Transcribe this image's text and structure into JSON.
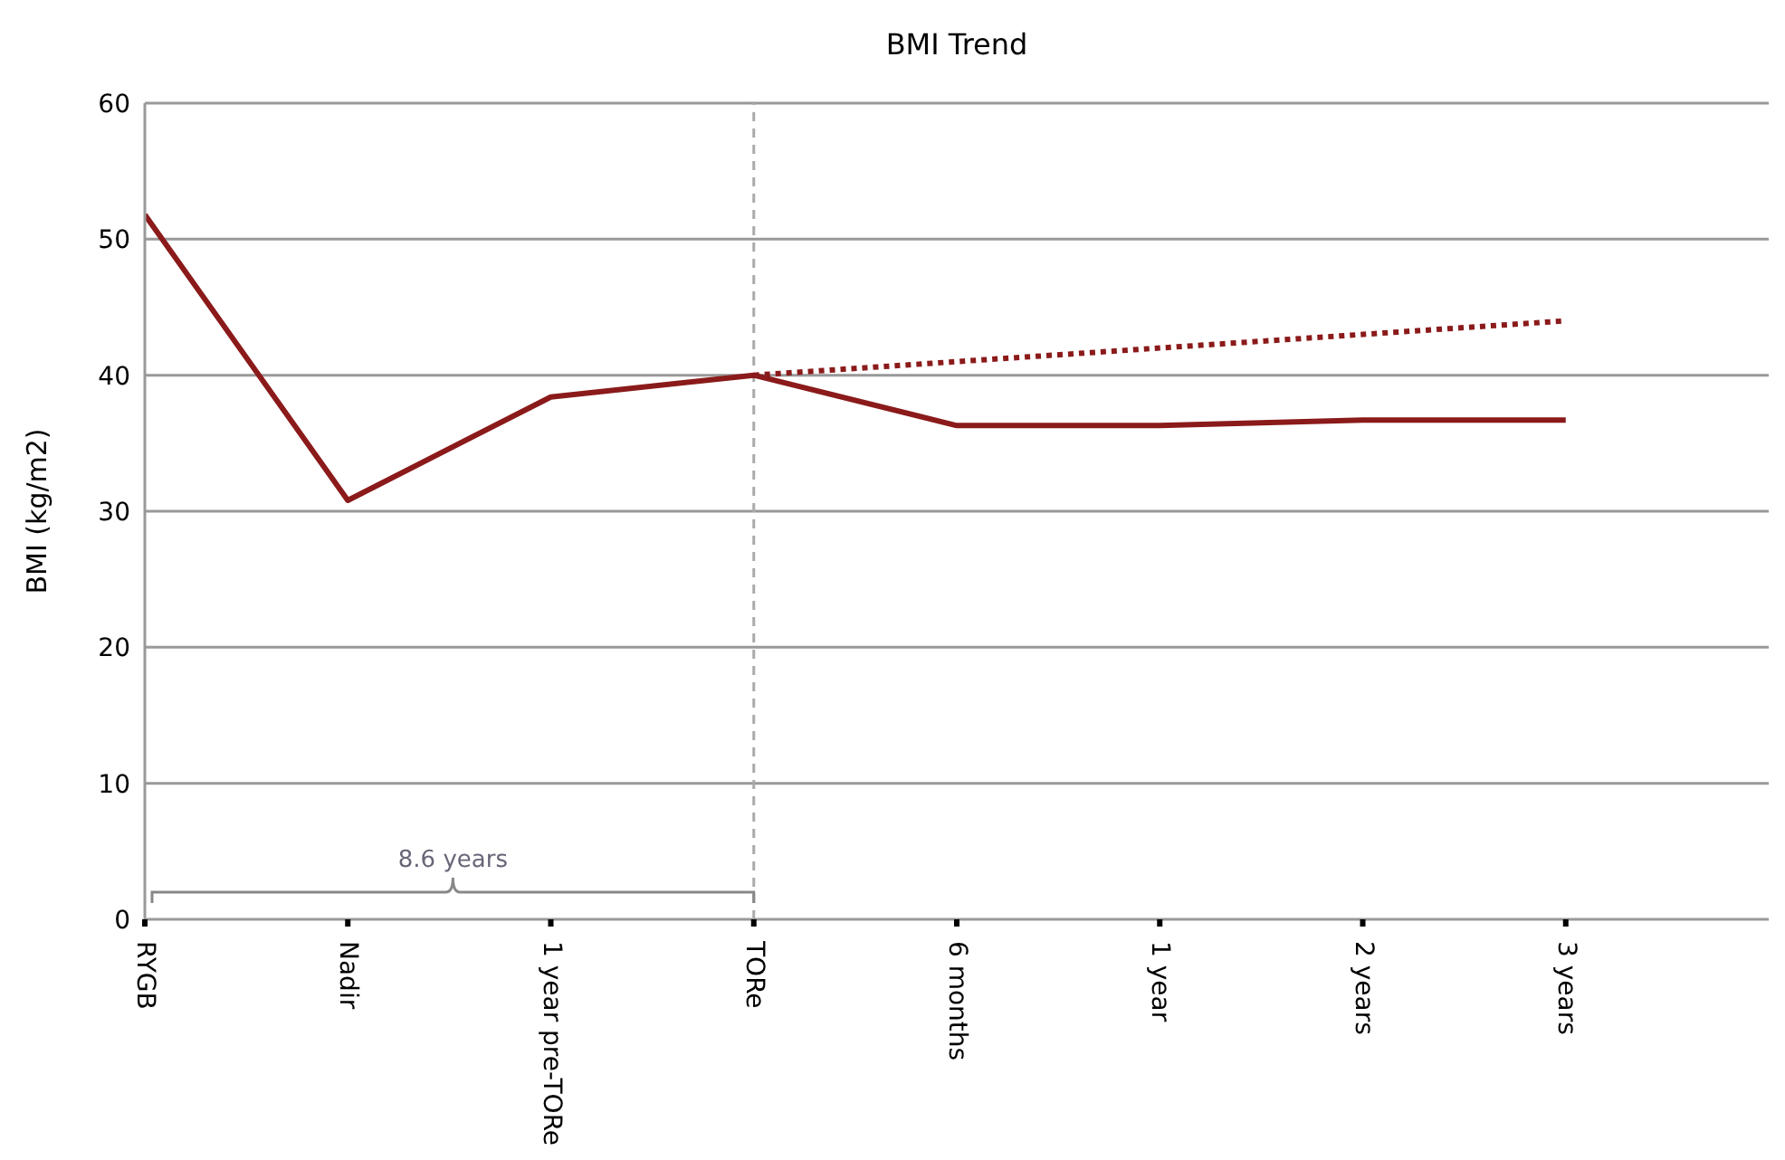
{
  "chart_data": {
    "type": "line",
    "title": "BMI Trend",
    "ylabel": "BMI (kg/m2)",
    "categories": [
      "RYGB",
      "Nadir",
      "1 year pre-TORe",
      "TORe",
      "6 months",
      "1 year",
      "2 years",
      "3 years"
    ],
    "ylim": [
      0,
      60
    ],
    "yticks": [
      0,
      10,
      20,
      30,
      40,
      50,
      60
    ],
    "grid": "y",
    "legend": false,
    "marker": "none",
    "series": [
      {
        "color": "#8b1a1a",
        "values": [
          51.8,
          30.8,
          38.4,
          40,
          36.3,
          36.3,
          36.7,
          36.7
        ],
        "line_style": "solid"
      },
      {
        "x": [
          "TORe",
          "3 years"
        ],
        "color": "#8b1a1a",
        "values": [
          40,
          44
        ],
        "line_style": "dotted"
      }
    ],
    "ref_lines": [
      {
        "axis": "x",
        "value": "TORe",
        "color": "#aaaaaa",
        "line_style": "dashed"
      }
    ],
    "annotations": [
      "8.6 years"
    ]
  }
}
